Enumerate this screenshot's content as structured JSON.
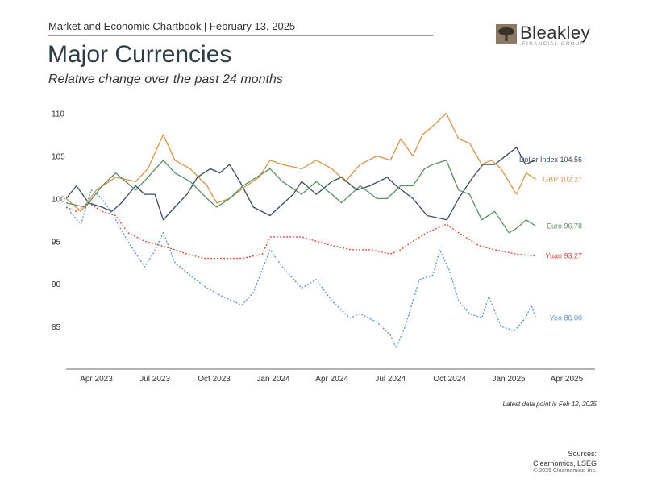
{
  "header": {
    "chartbook": "Market and Economic Chartbook | February 13, 2025",
    "title": "Major Currencies",
    "subtitle": "Relative change over the past 24 months"
  },
  "logo": {
    "name": "Bleakley",
    "tagline": "FINANCIAL GROUP"
  },
  "footer": {
    "note": "Latest data point is Feb 12, 2025",
    "sources": "Sources: Clearnomics, LSEG",
    "copyright": "© 2025 Clearnomics, Inc."
  },
  "chart_data": {
    "type": "line",
    "y_ticks": [
      85,
      90,
      95,
      100,
      105,
      110
    ],
    "ylim": [
      80,
      111
    ],
    "x_ticks": [
      "Apr 2023",
      "Jul 2023",
      "Oct 2023",
      "Jan 2024",
      "Apr 2024",
      "Jul 2024",
      "Oct 2024",
      "Jan 2025",
      "Apr 2025"
    ],
    "x_tick_dates": [
      "2023-04-01",
      "2023-07-01",
      "2023-10-01",
      "2024-01-01",
      "2024-04-01",
      "2024-07-01",
      "2024-10-01",
      "2025-01-01",
      "2025-04-01"
    ],
    "xlim": [
      "2023-02-13",
      "2025-05-15"
    ],
    "grid": false,
    "series": [
      {
        "name": "Dollar Index",
        "label": "Dollar Index 104.56",
        "color": "#3b4a5a",
        "dash": "",
        "points": [
          [
            "2023-02-13",
            100
          ],
          [
            "2023-03-01",
            101.5
          ],
          [
            "2023-03-20",
            99.5
          ],
          [
            "2023-04-10",
            99.0
          ],
          [
            "2023-04-25",
            98.5
          ],
          [
            "2023-05-10",
            99.5
          ],
          [
            "2023-06-01",
            101.5
          ],
          [
            "2023-06-15",
            100.5
          ],
          [
            "2023-07-01",
            100.5
          ],
          [
            "2023-07-14",
            97.5
          ],
          [
            "2023-08-01",
            99.0
          ],
          [
            "2023-08-20",
            100.5
          ],
          [
            "2023-09-05",
            102.5
          ],
          [
            "2023-09-25",
            103.5
          ],
          [
            "2023-10-10",
            103.0
          ],
          [
            "2023-10-25",
            104.0
          ],
          [
            "2023-11-10",
            102.0
          ],
          [
            "2023-12-01",
            99.0
          ],
          [
            "2023-12-27",
            98.0
          ],
          [
            "2024-01-10",
            99.0
          ],
          [
            "2024-02-01",
            100.5
          ],
          [
            "2024-02-14",
            102.0
          ],
          [
            "2024-03-08",
            100.5
          ],
          [
            "2024-04-01",
            102.0
          ],
          [
            "2024-04-16",
            102.5
          ],
          [
            "2024-05-10",
            101.0
          ],
          [
            "2024-05-30",
            101.5
          ],
          [
            "2024-06-26",
            102.5
          ],
          [
            "2024-07-10",
            101.5
          ],
          [
            "2024-08-05",
            100.0
          ],
          [
            "2024-08-27",
            98.0
          ],
          [
            "2024-09-27",
            97.5
          ],
          [
            "2024-10-15",
            100.0
          ],
          [
            "2024-11-06",
            102.5
          ],
          [
            "2024-11-22",
            104.0
          ],
          [
            "2024-12-10",
            104.0
          ],
          [
            "2025-01-13",
            106.0
          ],
          [
            "2025-01-27",
            104.0
          ],
          [
            "2025-02-12",
            104.56
          ]
        ]
      },
      {
        "name": "GBP",
        "label": "GBP 102.27",
        "color": "#d4954a",
        "dash": "",
        "points": [
          [
            "2023-02-13",
            100
          ],
          [
            "2023-03-08",
            98.5
          ],
          [
            "2023-04-01",
            101.0
          ],
          [
            "2023-05-01",
            102.5
          ],
          [
            "2023-06-01",
            102.0
          ],
          [
            "2023-06-20",
            103.5
          ],
          [
            "2023-07-14",
            107.5
          ],
          [
            "2023-08-01",
            104.5
          ],
          [
            "2023-08-25",
            103.5
          ],
          [
            "2023-09-20",
            101.5
          ],
          [
            "2023-10-05",
            99.5
          ],
          [
            "2023-10-25",
            100.0
          ],
          [
            "2023-11-20",
            101.5
          ],
          [
            "2023-12-10",
            102.5
          ],
          [
            "2023-12-27",
            104.5
          ],
          [
            "2024-01-15",
            104.0
          ],
          [
            "2024-02-14",
            103.5
          ],
          [
            "2024-03-08",
            104.5
          ],
          [
            "2024-04-01",
            103.5
          ],
          [
            "2024-04-22",
            102.0
          ],
          [
            "2024-05-15",
            104.0
          ],
          [
            "2024-06-10",
            105.0
          ],
          [
            "2024-07-01",
            104.5
          ],
          [
            "2024-07-17",
            107.0
          ],
          [
            "2024-08-05",
            105.0
          ],
          [
            "2024-08-20",
            107.5
          ],
          [
            "2024-09-05",
            108.5
          ],
          [
            "2024-09-26",
            110.0
          ],
          [
            "2024-10-15",
            107.0
          ],
          [
            "2024-11-01",
            106.5
          ],
          [
            "2024-11-20",
            104.0
          ],
          [
            "2024-12-05",
            104.5
          ],
          [
            "2024-12-20",
            103.5
          ],
          [
            "2025-01-13",
            100.5
          ],
          [
            "2025-01-28",
            103.0
          ],
          [
            "2025-02-12",
            102.27
          ]
        ]
      },
      {
        "name": "Euro",
        "label": "Euro 96.78",
        "color": "#5a8f65",
        "dash": "",
        "points": [
          [
            "2023-02-13",
            99.5
          ],
          [
            "2023-03-15",
            99.0
          ],
          [
            "2023-04-10",
            101.5
          ],
          [
            "2023-05-01",
            103.0
          ],
          [
            "2023-06-01",
            101.0
          ],
          [
            "2023-06-20",
            102.5
          ],
          [
            "2023-07-14",
            104.5
          ],
          [
            "2023-08-01",
            103.0
          ],
          [
            "2023-08-25",
            102.0
          ],
          [
            "2023-09-20",
            100.0
          ],
          [
            "2023-10-05",
            99.0
          ],
          [
            "2023-10-25",
            100.0
          ],
          [
            "2023-11-15",
            101.5
          ],
          [
            "2023-12-27",
            103.5
          ],
          [
            "2024-01-15",
            102.0
          ],
          [
            "2024-02-14",
            100.5
          ],
          [
            "2024-03-08",
            102.0
          ],
          [
            "2024-04-01",
            100.5
          ],
          [
            "2024-04-16",
            99.5
          ],
          [
            "2024-05-15",
            101.5
          ],
          [
            "2024-06-10",
            100.0
          ],
          [
            "2024-06-26",
            100.0
          ],
          [
            "2024-07-17",
            101.5
          ],
          [
            "2024-08-05",
            101.5
          ],
          [
            "2024-08-23",
            103.5
          ],
          [
            "2024-09-05",
            104.0
          ],
          [
            "2024-09-26",
            104.5
          ],
          [
            "2024-10-15",
            101.0
          ],
          [
            "2024-11-01",
            100.5
          ],
          [
            "2024-11-20",
            97.5
          ],
          [
            "2024-12-10",
            98.5
          ],
          [
            "2025-01-01",
            96.0
          ],
          [
            "2025-01-13",
            96.5
          ],
          [
            "2025-01-28",
            97.5
          ],
          [
            "2025-02-12",
            96.78
          ]
        ]
      },
      {
        "name": "Yuan",
        "label": "Yuan 93.27",
        "color": "#cc4a3c",
        "dash": "2,2",
        "points": [
          [
            "2023-02-13",
            99.0
          ],
          [
            "2023-03-01",
            98.5
          ],
          [
            "2023-03-20",
            99.5
          ],
          [
            "2023-04-10",
            98.5
          ],
          [
            "2023-05-01",
            98.0
          ],
          [
            "2023-05-20",
            96.0
          ],
          [
            "2023-06-15",
            95.0
          ],
          [
            "2023-07-10",
            94.5
          ],
          [
            "2023-08-01",
            94.0
          ],
          [
            "2023-08-20",
            93.5
          ],
          [
            "2023-09-15",
            93.0
          ],
          [
            "2023-10-15",
            93.0
          ],
          [
            "2023-11-15",
            93.0
          ],
          [
            "2023-12-15",
            93.5
          ],
          [
            "2023-12-27",
            95.5
          ],
          [
            "2024-01-15",
            95.5
          ],
          [
            "2024-02-14",
            95.5
          ],
          [
            "2024-03-08",
            95.0
          ],
          [
            "2024-04-01",
            94.5
          ],
          [
            "2024-05-01",
            94.0
          ],
          [
            "2024-06-01",
            94.0
          ],
          [
            "2024-07-01",
            93.5
          ],
          [
            "2024-07-17",
            94.0
          ],
          [
            "2024-08-05",
            95.0
          ],
          [
            "2024-08-27",
            96.0
          ],
          [
            "2024-09-26",
            97.0
          ],
          [
            "2024-10-15",
            96.0
          ],
          [
            "2024-11-15",
            94.5
          ],
          [
            "2024-12-10",
            94.0
          ],
          [
            "2025-01-13",
            93.5
          ],
          [
            "2025-02-12",
            93.27
          ]
        ]
      },
      {
        "name": "Yen",
        "label": "Yen 86.00",
        "color": "#5b8fc6",
        "dash": "2,2",
        "points": [
          [
            "2023-02-13",
            99.0
          ],
          [
            "2023-03-08",
            97.0
          ],
          [
            "2023-03-24",
            101.0
          ],
          [
            "2023-04-10",
            100.0
          ],
          [
            "2023-05-01",
            97.5
          ],
          [
            "2023-05-20",
            95.0
          ],
          [
            "2023-06-15",
            92.0
          ],
          [
            "2023-06-28",
            93.5
          ],
          [
            "2023-07-14",
            96.0
          ],
          [
            "2023-08-01",
            92.5
          ],
          [
            "2023-08-25",
            91.0
          ],
          [
            "2023-09-20",
            89.5
          ],
          [
            "2023-10-15",
            88.5
          ],
          [
            "2023-11-13",
            87.5
          ],
          [
            "2023-12-01",
            89.0
          ],
          [
            "2023-12-27",
            94.0
          ],
          [
            "2024-01-15",
            92.0
          ],
          [
            "2024-02-14",
            89.5
          ],
          [
            "2024-03-08",
            90.5
          ],
          [
            "2024-04-01",
            88.0
          ],
          [
            "2024-04-29",
            86.0
          ],
          [
            "2024-05-15",
            86.5
          ],
          [
            "2024-06-10",
            85.5
          ],
          [
            "2024-07-01",
            84.0
          ],
          [
            "2024-07-10",
            82.5
          ],
          [
            "2024-07-24",
            85.0
          ],
          [
            "2024-08-05",
            88.0
          ],
          [
            "2024-08-15",
            90.5
          ],
          [
            "2024-09-05",
            91.0
          ],
          [
            "2024-09-16",
            94.0
          ],
          [
            "2024-10-01",
            91.5
          ],
          [
            "2024-10-15",
            88.0
          ],
          [
            "2024-11-01",
            86.5
          ],
          [
            "2024-11-20",
            86.0
          ],
          [
            "2024-12-01",
            88.5
          ],
          [
            "2024-12-20",
            85.0
          ],
          [
            "2025-01-10",
            84.5
          ],
          [
            "2025-01-27",
            86.0
          ],
          [
            "2025-02-05",
            87.5
          ],
          [
            "2025-02-12",
            86.0
          ]
        ]
      }
    ]
  }
}
